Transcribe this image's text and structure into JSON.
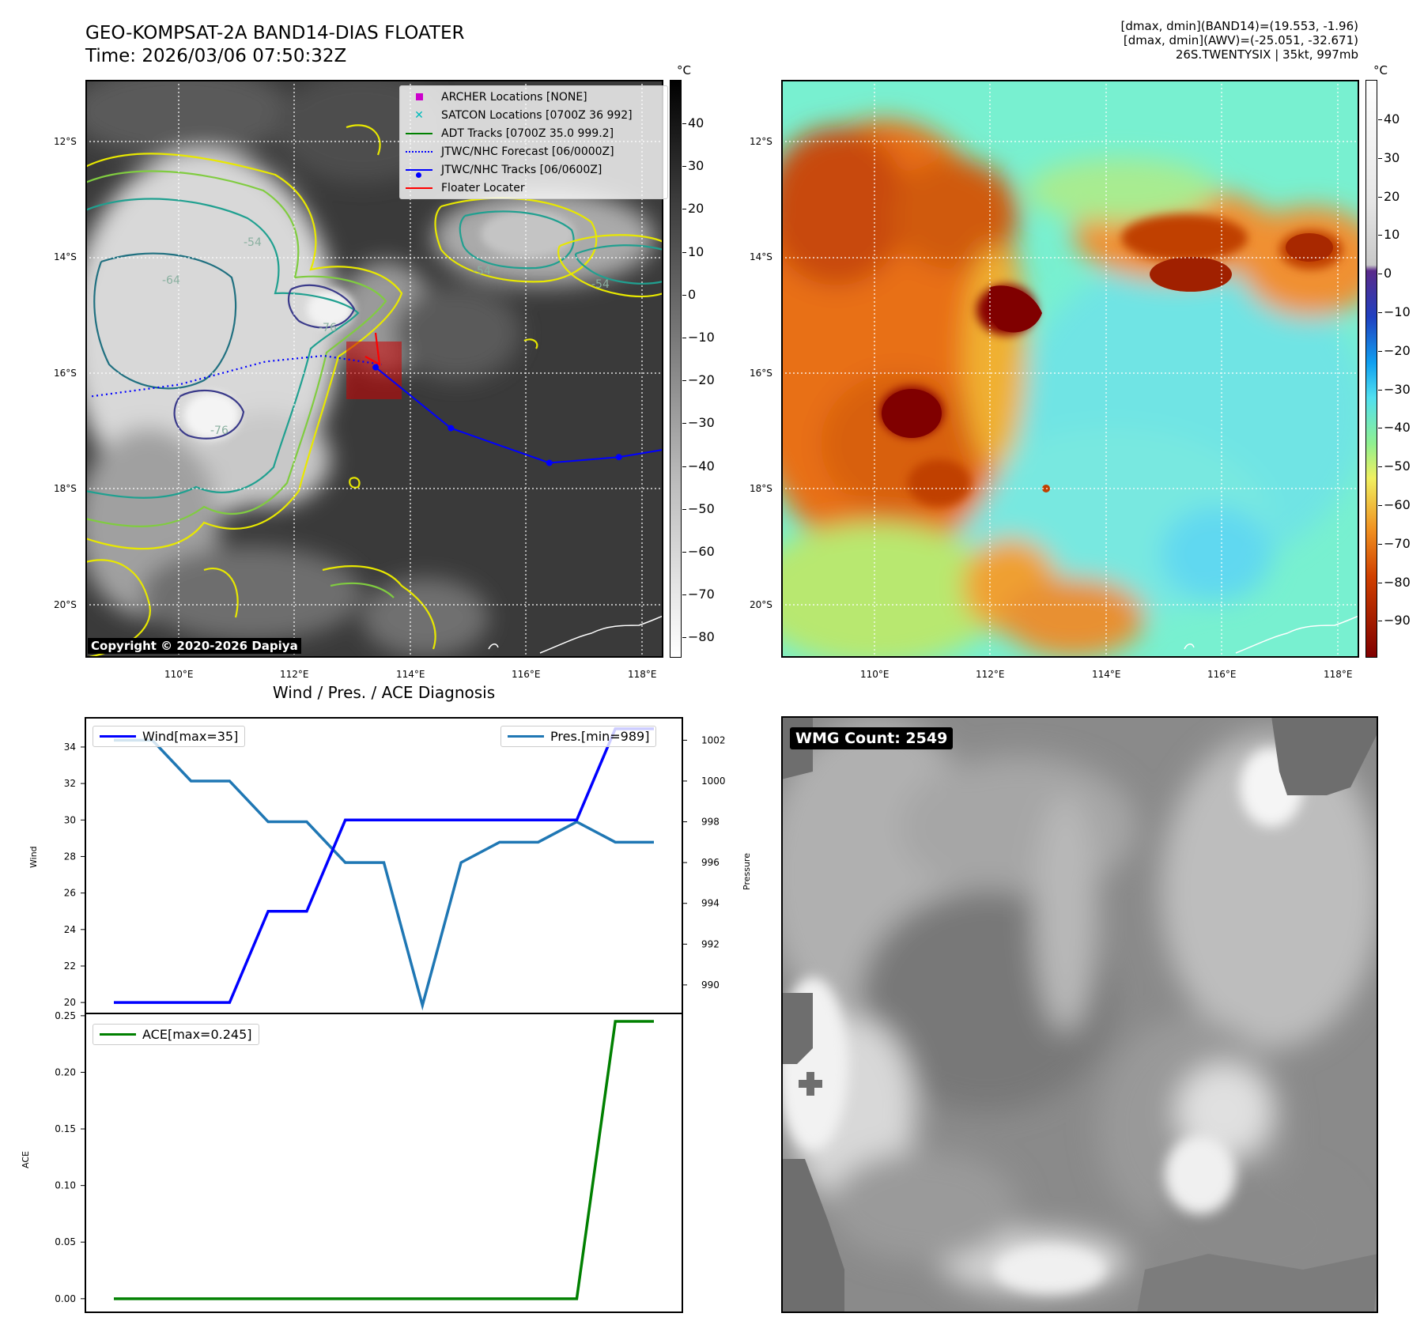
{
  "header": {
    "title_line1": "GEO-KOMPSAT-2A BAND14-DIAS FLOATER",
    "title_line2": "Time: 2026/03/06 07:50:32Z",
    "info_line1": "[dmax, dmin](BAND14)=(19.553, -1.96)",
    "info_line2": "[dmax, dmin](AWV)=(-25.051, -32.671)",
    "info_line3": "26S.TWENTYSIX | 35kt, 997mb"
  },
  "copyright": "Copyright © 2020-2026 Dapiya",
  "colorbar_unit": "°C",
  "map_axes": {
    "lat_labels": [
      "12°S",
      "14°S",
      "16°S",
      "18°S",
      "20°S"
    ],
    "lon_labels": [
      "110°E",
      "112°E",
      "114°E",
      "116°E",
      "118°E"
    ]
  },
  "left_colorbar_ticks": [
    "40",
    "30",
    "20",
    "10",
    "0",
    "−10",
    "−20",
    "−30",
    "−40",
    "−50",
    "−60",
    "−70",
    "−80"
  ],
  "right_colorbar_ticks": [
    "40",
    "30",
    "20",
    "10",
    "0",
    "−10",
    "−20",
    "−30",
    "−40",
    "−50",
    "−60",
    "−70",
    "−80",
    "−90"
  ],
  "contour_labels": [
    "-54",
    "-54",
    "-54",
    "-76",
    "-76",
    "-64"
  ],
  "map_legend": [
    {
      "label": "ARCHER Locations [NONE]",
      "icon": "square-marker",
      "color": "#cc00cc"
    },
    {
      "label": "SATCON Locations [0700Z 36 992]",
      "icon": "x-marker",
      "color": "#00bbbb"
    },
    {
      "label": "ADT Tracks [0700Z 35.0 999.2]",
      "icon": "line",
      "color": "#008000"
    },
    {
      "label": "JTWC/NHC Forecast [06/0000Z]",
      "icon": "dotted-line",
      "color": "#0000ff"
    },
    {
      "label": "JTWC/NHC Tracks [06/0600Z]",
      "icon": "line-dot",
      "color": "#0000ff"
    },
    {
      "label": "Floater Locater",
      "icon": "line",
      "color": "#ff0000"
    }
  ],
  "tracks": {
    "forecast": [
      [
        108.5,
        -16.4
      ],
      [
        110.0,
        -16.2
      ],
      [
        111.5,
        -15.8
      ],
      [
        112.5,
        -15.7
      ],
      [
        113.5,
        -15.85
      ]
    ],
    "best": [
      [
        113.4,
        -15.9
      ],
      [
        114.7,
        -16.95
      ],
      [
        116.4,
        -17.55
      ],
      [
        117.6,
        -17.45
      ],
      [
        118.5,
        -17.3
      ]
    ]
  },
  "diagnosis_title": "Wind / Pres. / ACE Diagnosis",
  "wmg_count": "WMG Count: 2549",
  "chart_data": [
    {
      "type": "line",
      "title": "Wind / Pres. / ACE Diagnosis",
      "ylabel": "Wind",
      "ylabel_right": "Pressure",
      "x": [
        0,
        1,
        2,
        3,
        4,
        5,
        6,
        7,
        8,
        9,
        10,
        11,
        12,
        13,
        14
      ],
      "ylim": [
        19.4,
        35.6
      ],
      "ylim_right": [
        988.6,
        1003.1
      ],
      "yticks": [
        20,
        22,
        24,
        26,
        28,
        30,
        32,
        34
      ],
      "yticks_right": [
        990,
        992,
        994,
        996,
        998,
        1000,
        1002
      ],
      "legend_left": "top-left",
      "legend_right": "top-right",
      "series": [
        {
          "name": "Wind[max=35]",
          "axis": "left",
          "color": "#0000ff",
          "values": [
            20,
            20,
            20,
            20,
            25,
            25,
            30,
            30,
            30,
            30,
            30,
            30,
            30,
            35,
            35
          ]
        },
        {
          "name": "Pres.[min=989]",
          "axis": "right",
          "color": "#1f77b4",
          "values": [
            1002,
            1002,
            1000,
            1000,
            998,
            998,
            996,
            996,
            989,
            996,
            997,
            997,
            998,
            997,
            997
          ]
        }
      ]
    },
    {
      "type": "line",
      "ylabel": "ACE",
      "x": [
        0,
        1,
        2,
        3,
        4,
        5,
        6,
        7,
        8,
        9,
        10,
        11,
        12,
        13,
        14
      ],
      "ylim": [
        -0.012,
        0.252
      ],
      "yticks": [
        "0.00",
        "0.05",
        "0.10",
        "0.15",
        "0.20",
        "0.25"
      ],
      "legend": "top-left",
      "series": [
        {
          "name": "ACE[max=0.245]",
          "color": "#008000",
          "values": [
            0,
            0,
            0,
            0,
            0,
            0,
            0,
            0,
            0,
            0,
            0,
            0,
            0,
            0.245,
            0.245
          ]
        }
      ]
    }
  ]
}
